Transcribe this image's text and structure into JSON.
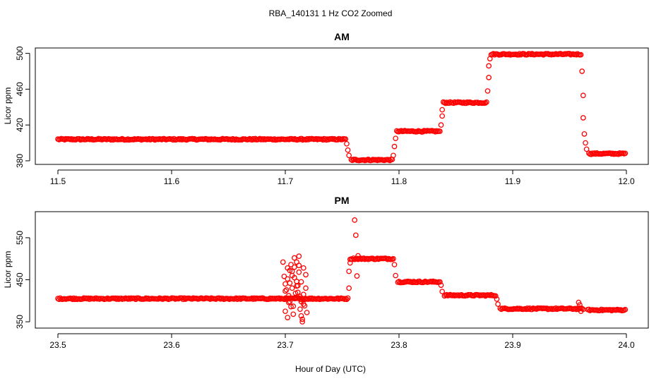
{
  "figure": {
    "title": "RBA_140131  1 Hz CO2 Zoomed",
    "xlabel": "Hour of Day (UTC)",
    "point_color": "#ff0000",
    "marker": "open-circle"
  },
  "chart_data": [
    {
      "type": "scatter",
      "title": "AM",
      "xlabel": "",
      "ylabel": "Licor ppm",
      "xlim": [
        11.5,
        12.0
      ],
      "ylim": [
        376,
        506
      ],
      "xticks": [
        11.5,
        11.6,
        11.7,
        11.8,
        11.9,
        12.0
      ],
      "xtick_labels": [
        "11.5",
        "11.6",
        "11.7",
        "11.8",
        "11.9",
        "12.0"
      ],
      "yticks": [
        380,
        420,
        460,
        500
      ],
      "ytick_labels": [
        "380",
        "420",
        "460",
        "500"
      ],
      "grid": false,
      "legend": "none",
      "segments": [
        {
          "x_start": 11.5,
          "x_end": 11.753,
          "y": 404
        },
        {
          "x_start": 11.758,
          "x_end": 11.794,
          "y": 381
        },
        {
          "x_start": 11.798,
          "x_end": 11.836,
          "y": 413
        },
        {
          "x_start": 11.839,
          "x_end": 11.877,
          "y": 445
        },
        {
          "x_start": 11.881,
          "x_end": 11.96,
          "y": 499
        },
        {
          "x_start": 11.967,
          "x_end": 11.999,
          "y": 388
        }
      ],
      "transition_points": {
        "x": [
          11.754,
          11.755,
          11.756,
          11.795,
          11.796,
          11.797,
          11.837,
          11.838,
          11.838,
          11.878,
          11.879,
          11.879,
          11.88,
          11.961,
          11.962,
          11.962,
          11.963,
          11.964,
          11.965
        ],
        "y": [
          399,
          392,
          386,
          386,
          396,
          405,
          420,
          430,
          437,
          458,
          473,
          486,
          494,
          480,
          453,
          428,
          410,
          400,
          393
        ]
      }
    },
    {
      "type": "scatter",
      "title": "PM",
      "xlabel": "",
      "ylabel": "Licor ppm",
      "xlim": [
        23.5,
        24.0
      ],
      "ylim": [
        335,
        612
      ],
      "xticks": [
        23.5,
        23.6,
        23.7,
        23.8,
        23.9,
        24.0
      ],
      "xtick_labels": [
        "23.5",
        "23.6",
        "23.7",
        "23.8",
        "23.9",
        "24.0"
      ],
      "yticks": [
        350,
        450,
        550
      ],
      "ytick_labels": [
        "350",
        "450",
        "550"
      ],
      "grid": false,
      "legend": "none",
      "segments": [
        {
          "x_start": 23.5,
          "x_end": 23.755,
          "y": 405
        },
        {
          "x_start": 23.757,
          "x_end": 23.795,
          "y": 500
        },
        {
          "x_start": 23.799,
          "x_end": 23.836,
          "y": 445
        },
        {
          "x_start": 23.84,
          "x_end": 23.885,
          "y": 413
        },
        {
          "x_start": 23.889,
          "x_end": 23.962,
          "y": 381
        },
        {
          "x_start": 23.966,
          "x_end": 23.999,
          "y": 378
        }
      ],
      "transition_points": {
        "x": [
          23.756,
          23.756,
          23.757,
          23.761,
          23.762,
          23.763,
          23.764,
          23.796,
          23.797,
          23.837,
          23.838,
          23.886,
          23.887,
          23.958,
          23.959,
          23.96
        ],
        "y": [
          430,
          470,
          490,
          592,
          556,
          459,
          507,
          486,
          460,
          437,
          422,
          404,
          392,
          396,
          390,
          375
        ]
      },
      "scatter_cluster": {
        "x": [
          23.698,
          23.699,
          23.7,
          23.7,
          23.701,
          23.702,
          23.702,
          23.703,
          23.704,
          23.704,
          23.705,
          23.706,
          23.706,
          23.707,
          23.708,
          23.708,
          23.709,
          23.71,
          23.71,
          23.711,
          23.712,
          23.712,
          23.713,
          23.714,
          23.714,
          23.715,
          23.716,
          23.716,
          23.717,
          23.718,
          23.718,
          23.719,
          23.7,
          23.703,
          23.706,
          23.709,
          23.712,
          23.715,
          23.718,
          23.701,
          23.704,
          23.707,
          23.71,
          23.713,
          23.716,
          23.702,
          23.705,
          23.708,
          23.711,
          23.714
        ],
        "y": [
          492,
          458,
          423,
          375,
          405,
          478,
          360,
          412,
          442,
          398,
          486,
          470,
          430,
          387,
          502,
          455,
          408,
          492,
          435,
          420,
          506,
          468,
          380,
          445,
          398,
          356,
          478,
          415,
          388,
          462,
          430,
          372,
          440,
          396,
          460,
          418,
          484,
          350,
          404,
          426,
          472,
          368,
          446,
          410,
          392,
          452,
          386,
          480,
          436,
          364
        ]
      }
    }
  ]
}
